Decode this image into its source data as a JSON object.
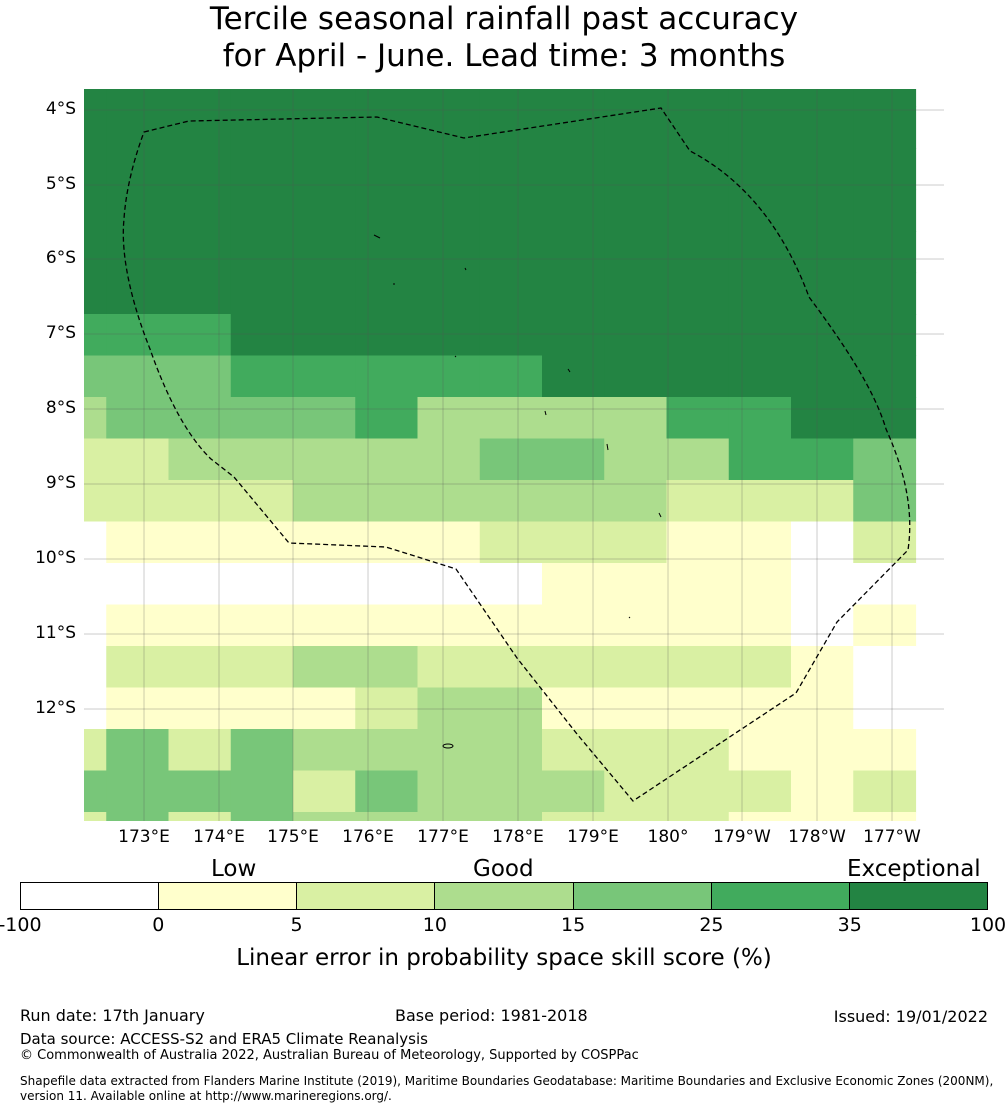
{
  "title": {
    "line1": "Tercile seasonal rainfall past accuracy",
    "line2": "for April - June. Lead time: 3 months"
  },
  "map": {
    "lat_labels": [
      "4°S",
      "5°S",
      "6°S",
      "7°S",
      "8°S",
      "9°S",
      "10°S",
      "11°S",
      "12°S"
    ],
    "lon_labels": [
      "173°E",
      "174°E",
      "175°E",
      "176°E",
      "177°E",
      "178°E",
      "179°E",
      "180°",
      "179°W",
      "178°W",
      "177°W"
    ],
    "category_colors": [
      "#ffffff",
      "#ffffcc",
      "#d9f0a3",
      "#addd8e",
      "#78c679",
      "#41ab5d",
      "#238443"
    ],
    "grid_legend": "0=-100..0, 1=0..5, 2=5..10, 3=10..15, 4=15..25, 5=25..35, 6=35..100",
    "grid": [
      "66666666666666",
      "66666666666666",
      "66666666666666",
      "66666666666666",
      "66666666666666",
      "66666666666666",
      "55566666666666",
      "44455555666666",
      "34444533335566",
      "22333334433554",
      "22223333332224",
      "01111112221102",
      "00000000111100",
      "01111111111101",
      "02223322222210",
      "01111233111110",
      "24243333222111",
      "44442433322212",
      "24243333222111"
    ]
  },
  "legend": {
    "categories": [
      "Low",
      "Good",
      "Exceptional"
    ],
    "ticks": [
      "-100",
      "0",
      "5",
      "10",
      "15",
      "25",
      "35",
      "100"
    ],
    "colors": [
      "#ffffff",
      "#ffffcc",
      "#d9f0a3",
      "#addd8e",
      "#78c679",
      "#41ab5d",
      "#238443"
    ],
    "label": "Linear error in probability space skill score (%)"
  },
  "footer": {
    "run_date": "Run date: 17th January",
    "base_period": "Base period: 1981-2018",
    "issued": "Issued: 19/01/2022",
    "data_source": "Data source: ACCESS-S2 and ERA5 Climate Reanalysis",
    "copyright": "© Commonwealth of Australia 2022, Australian Bureau of Meteorology, Supported by COSPPac",
    "shapefile_line1": "Shapefile data extracted from Flanders Marine Institute (2019), Maritime Boundaries Geodatabase: Maritime Boundaries and Exclusive Economic Zones (200NM),",
    "shapefile_line2": "version 11. Available online at http://www.marineregions.org/."
  }
}
